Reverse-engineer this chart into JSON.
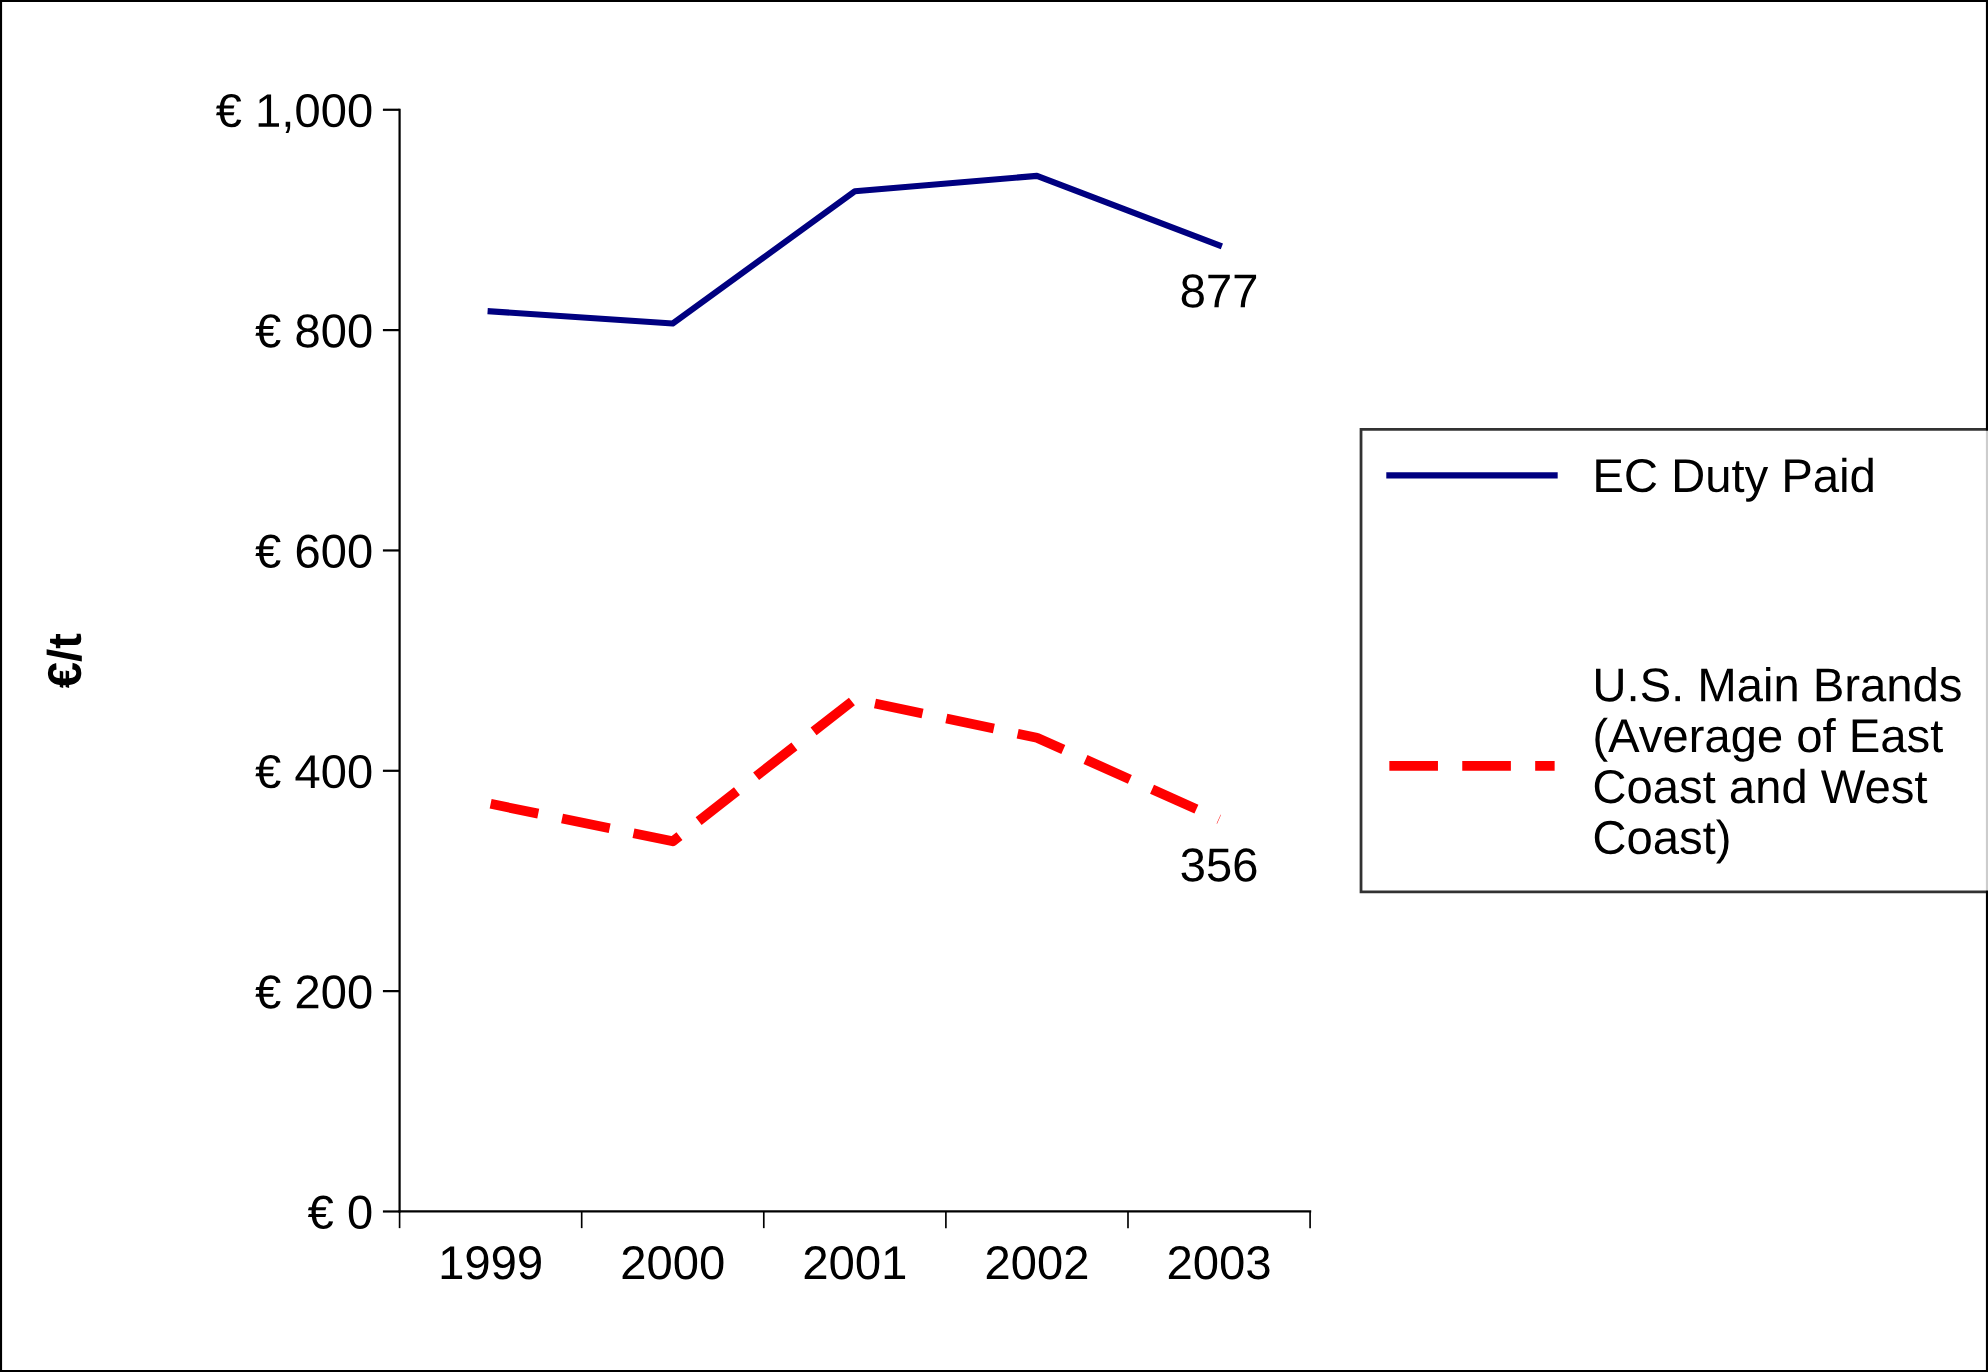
{
  "chart_data": {
    "type": "line",
    "ylabel": "€/t",
    "categories": [
      "1999",
      "2000",
      "2001",
      "2002",
      "2003"
    ],
    "series": [
      {
        "name": "EC Duty Paid",
        "color": "#000080",
        "line_style": "solid",
        "values": [
          817,
          806,
          926,
          940,
          877
        ],
        "value_labels": [
          null,
          null,
          null,
          null,
          "877"
        ]
      },
      {
        "name": "U.S. Main Brands (Average of East Coast and West Coast)",
        "color": "#ff0000",
        "line_style": "dashed",
        "values": [
          370,
          336,
          465,
          430,
          356
        ],
        "value_labels": [
          null,
          null,
          null,
          null,
          "356"
        ]
      }
    ],
    "ylim": [
      0,
      1000
    ],
    "yticks": [
      {
        "value": 0,
        "label": "€ 0"
      },
      {
        "value": 200,
        "label": "€ 200"
      },
      {
        "value": 400,
        "label": "€ 400"
      },
      {
        "value": 600,
        "label": "€ 600"
      },
      {
        "value": 800,
        "label": "€ 800"
      },
      {
        "value": 1000,
        "label": "€ 1,000"
      }
    ],
    "grid": false,
    "legend": "right",
    "marker": "none"
  }
}
